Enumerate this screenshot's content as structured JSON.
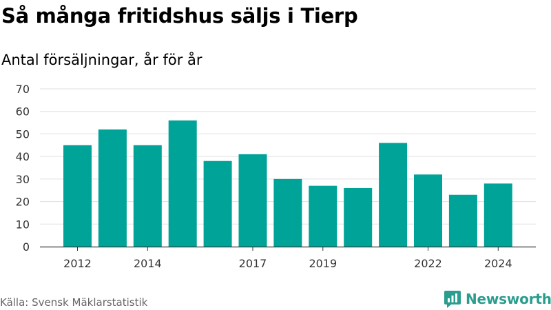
{
  "title": "Så många fritidshus säljs i Tierp",
  "subtitle": "Antal försäljningar, år för år",
  "source": "Källa: Svensk Mäklarstatistik",
  "brand": {
    "name": "Newsworthy",
    "icon": "newsworthy-logo-icon"
  },
  "colors": {
    "bar": "#00a398",
    "grid": "#e0e0e0",
    "axis": "#333333",
    "brand": "#2a9d8f"
  },
  "chart_data": {
    "type": "bar",
    "x": [
      2012,
      2013,
      2014,
      2015,
      2016,
      2017,
      2018,
      2019,
      2020,
      2021,
      2022,
      2023,
      2024
    ],
    "values": [
      45,
      52,
      45,
      56,
      38,
      41,
      30,
      27,
      26,
      46,
      32,
      23,
      28
    ],
    "x_tick_labels": [
      "2012",
      "2014",
      "2017",
      "2019",
      "2022",
      "2024"
    ],
    "y_ticks": [
      0,
      10,
      20,
      30,
      40,
      50,
      60,
      70
    ],
    "ylim": [
      0,
      70
    ],
    "grid": true,
    "title": "Så många fritidshus säljs i Tierp",
    "xlabel": "",
    "ylabel": ""
  }
}
